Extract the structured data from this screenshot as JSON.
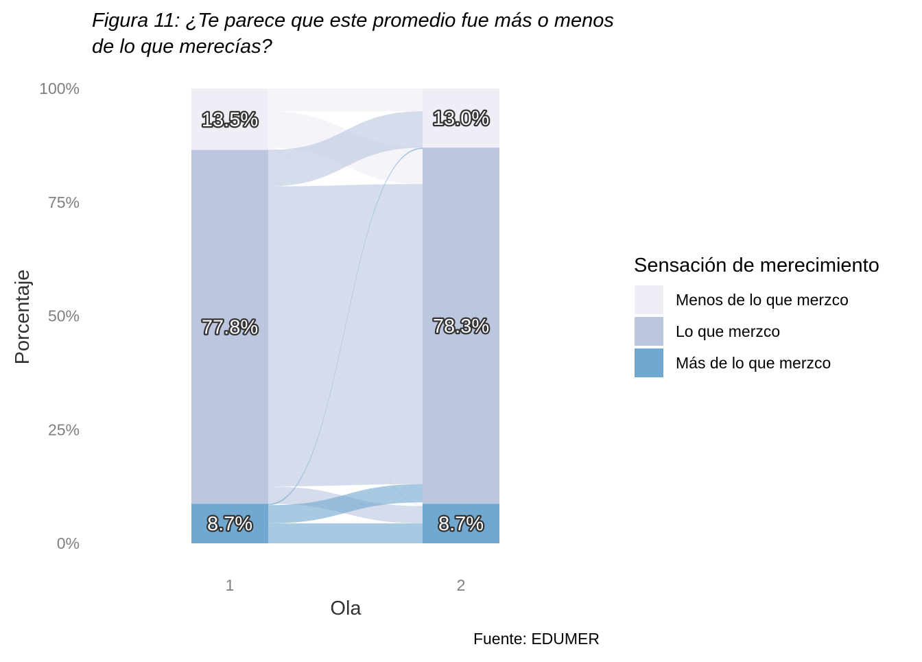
{
  "chart_data": {
    "type": "alluvial",
    "title_lines": [
      "Figura 11: ¿Te parece que este promedio fue más o menos",
      "de lo que merecías?"
    ],
    "xlabel": "Ola",
    "ylabel": "Porcentaje",
    "caption": "Fuente: EDUMER",
    "ylim": [
      0,
      100
    ],
    "y_ticks": [
      "0%",
      "25%",
      "50%",
      "75%",
      "100%"
    ],
    "y_tick_values": [
      0,
      25,
      50,
      75,
      100
    ],
    "x": [
      "1",
      "2"
    ],
    "grid": false,
    "legend": {
      "title": "Sensación de merecimiento",
      "position": "right",
      "entries": [
        {
          "label": "Menos de lo que merzco",
          "color": "#efedf5"
        },
        {
          "label": "Lo que merzco",
          "color": "#bcc6de"
        },
        {
          "label": "Más de lo que merzco",
          "color": "#71a8cf"
        }
      ]
    },
    "stacks": [
      {
        "x": "1",
        "values": [
          {
            "category": "Menos de lo que merzco",
            "value": 13.5,
            "label": "13.5%"
          },
          {
            "category": "Lo que merzco",
            "value": 77.8,
            "label": "77.8%"
          },
          {
            "category": "Más de lo que merzco",
            "value": 8.7,
            "label": "8.7%"
          }
        ]
      },
      {
        "x": "2",
        "values": [
          {
            "category": "Menos de lo que merzco",
            "value": 13.0,
            "label": "13.0%"
          },
          {
            "category": "Lo que merzco",
            "value": 78.3,
            "label": "78.3%"
          },
          {
            "category": "Más de lo que merzco",
            "value": 8.7,
            "label": "8.7%"
          }
        ]
      }
    ],
    "flows": [
      {
        "from": "Menos de lo que merzco",
        "to": "Menos de lo que merzco",
        "value": 5.0
      },
      {
        "from": "Menos de lo que merzco",
        "to": "Lo que merzco",
        "value": 8.0
      },
      {
        "from": "Menos de lo que merzco",
        "to": "Más de lo que merzco",
        "value": 0.5
      },
      {
        "from": "Lo que merzco",
        "to": "Menos de lo que merzco",
        "value": 8.0
      },
      {
        "from": "Lo que merzco",
        "to": "Lo que merzco",
        "value": 66.0
      },
      {
        "from": "Lo que merzco",
        "to": "Más de lo que merzco",
        "value": 3.8
      },
      {
        "from": "Más de lo que merzco",
        "to": "Menos de lo que merzco",
        "value": 0.3
      },
      {
        "from": "Más de lo que merzco",
        "to": "Lo que merzco",
        "value": 4.0
      },
      {
        "from": "Más de lo que merzco",
        "to": "Más de lo que merzco",
        "value": 4.4
      }
    ]
  }
}
